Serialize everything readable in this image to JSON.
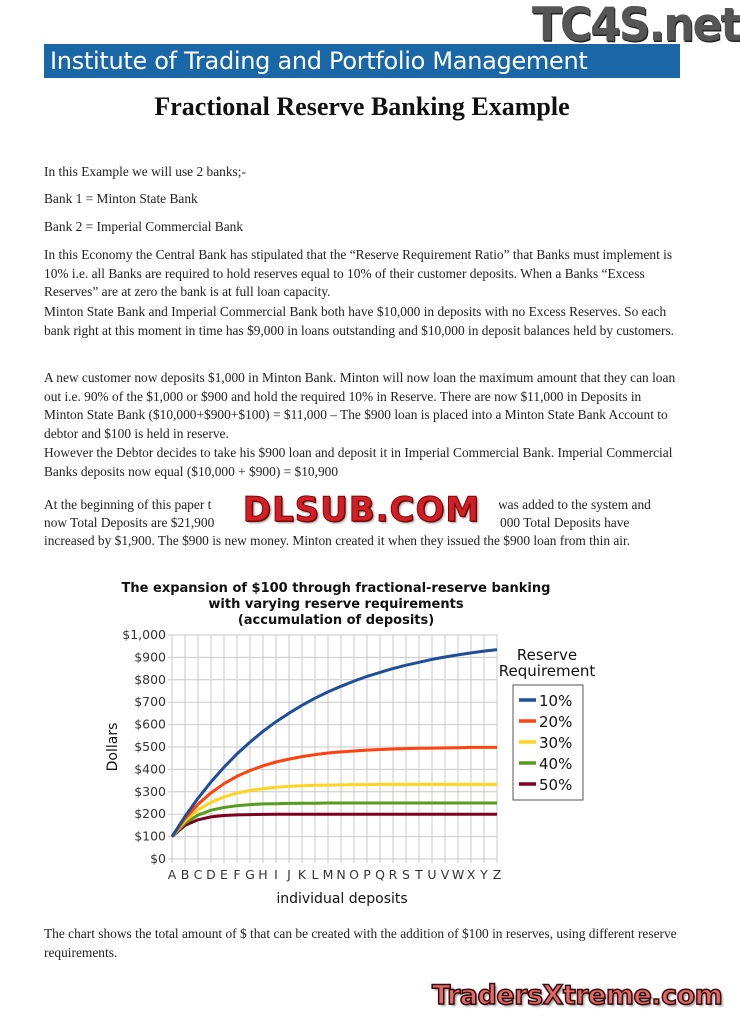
{
  "header": {
    "banner": "Institute of Trading and Portfolio Management",
    "title": "Fractional Reserve Banking Example"
  },
  "watermarks": {
    "top": "TC4S.net",
    "middle": "DLSUB.COM",
    "bottom": "TradersXtreme.com"
  },
  "paragraphs": {
    "intro": "In this Example we will use 2 banks;-",
    "bank1": "Bank 1 = Minton State Bank",
    "bank2": "Bank 2 = Imperial Commercial Bank",
    "p1": "In this Economy the Central Bank has stipulated that the “Reserve Requirement Ratio” that Banks must implement is 10% i.e. all Banks are required to hold reserves equal to 10% of their customer deposits. When a Banks “Excess Reserves” are at zero the bank is at full loan capacity.",
    "p2": "Minton State Bank and Imperial Commercial Bank both have $10,000 in deposits with no Excess Reserves. So each bank right at this moment in time has $9,000 in loans outstanding and $10,000 in deposit balances held by customers.",
    "p3": "A new customer now deposits $1,000 in Minton Bank. Minton will now loan the maximum amount that they can loan out i.e. 90% of the $1,000 or $900 and hold the required 10% in Reserve. There are now $11,000 in Deposits in Minton State Bank ($10,000+$900+$100) = $11,000 – The $900 loan is placed into a Minton State Bank Account to debtor and $100 is held in reserve.",
    "p4": "However the Debtor decides to take his $900 loan and deposit it in Imperial Commercial Bank. Imperial Commercial Banks deposits now equal ($10,000 + $900) = $10,900",
    "p5_l1a": "At the beginning of this paper t",
    "p5_l1b": "was added to the system and",
    "p5_l2a": "now Total Deposits are $21,900",
    "p5_l2b": "000 Total Deposits have",
    "p5_l3": "increased by $1,900. The $900 is new money. Minton created it when they issued the $900 loan from thin air.",
    "caption": "The chart shows the total amount of $ that can be created with the addition of $100 in reserves, using different reserve requirements."
  },
  "chart_data": {
    "type": "line",
    "title": [
      "The expansion of $100 through fractional-reserve banking",
      "with varying reserve requirements",
      "(accumulation of deposits)"
    ],
    "xlabel": "individual deposits",
    "ylabel": "Dollars",
    "ylim": [
      0,
      1000
    ],
    "grid": true,
    "legend_title": [
      "Reserve",
      "Requirement"
    ],
    "legend_position": "right",
    "categories": [
      "A",
      "B",
      "C",
      "D",
      "E",
      "F",
      "G",
      "H",
      "I",
      "J",
      "K",
      "L",
      "M",
      "N",
      "O",
      "P",
      "Q",
      "R",
      "S",
      "T",
      "U",
      "V",
      "W",
      "X",
      "Y",
      "Z"
    ],
    "y_ticks": [
      "$0",
      "$100",
      "$200",
      "$300",
      "$400",
      "$500",
      "$600",
      "$700",
      "$800",
      "$900",
      "$1,000"
    ],
    "series": [
      {
        "name": "10%",
        "color": "#1f4e9a",
        "values": [
          100,
          190,
          271,
          344,
          410,
          469,
          522,
          570,
          613,
          651,
          686,
          718,
          746,
          771,
          794,
          815,
          833,
          850,
          865,
          878,
          891,
          902,
          911,
          920,
          928,
          935
        ]
      },
      {
        "name": "20%",
        "color": "#ff420e",
        "values": [
          100,
          180,
          244,
          295,
          336,
          369,
          395,
          416,
          433,
          446,
          457,
          466,
          473,
          478,
          482,
          486,
          489,
          491,
          493,
          494,
          495,
          496,
          497,
          498,
          498,
          498
        ]
      },
      {
        "name": "30%",
        "color": "#ffd320",
        "values": [
          100,
          170,
          219,
          253,
          277,
          294,
          306,
          314,
          320,
          324,
          327,
          329,
          330,
          331,
          332,
          332,
          333,
          333,
          333,
          333,
          333,
          333,
          333,
          333,
          333,
          333
        ]
      },
      {
        "name": "40%",
        "color": "#579d1c",
        "values": [
          100,
          160,
          196,
          218,
          230,
          238,
          243,
          246,
          247,
          248,
          249,
          249,
          250,
          250,
          250,
          250,
          250,
          250,
          250,
          250,
          250,
          250,
          250,
          250,
          250,
          250
        ]
      },
      {
        "name": "50%",
        "color": "#7e0021",
        "values": [
          100,
          150,
          175,
          188,
          194,
          197,
          198,
          199,
          200,
          200,
          200,
          200,
          200,
          200,
          200,
          200,
          200,
          200,
          200,
          200,
          200,
          200,
          200,
          200,
          200,
          200
        ]
      }
    ]
  }
}
